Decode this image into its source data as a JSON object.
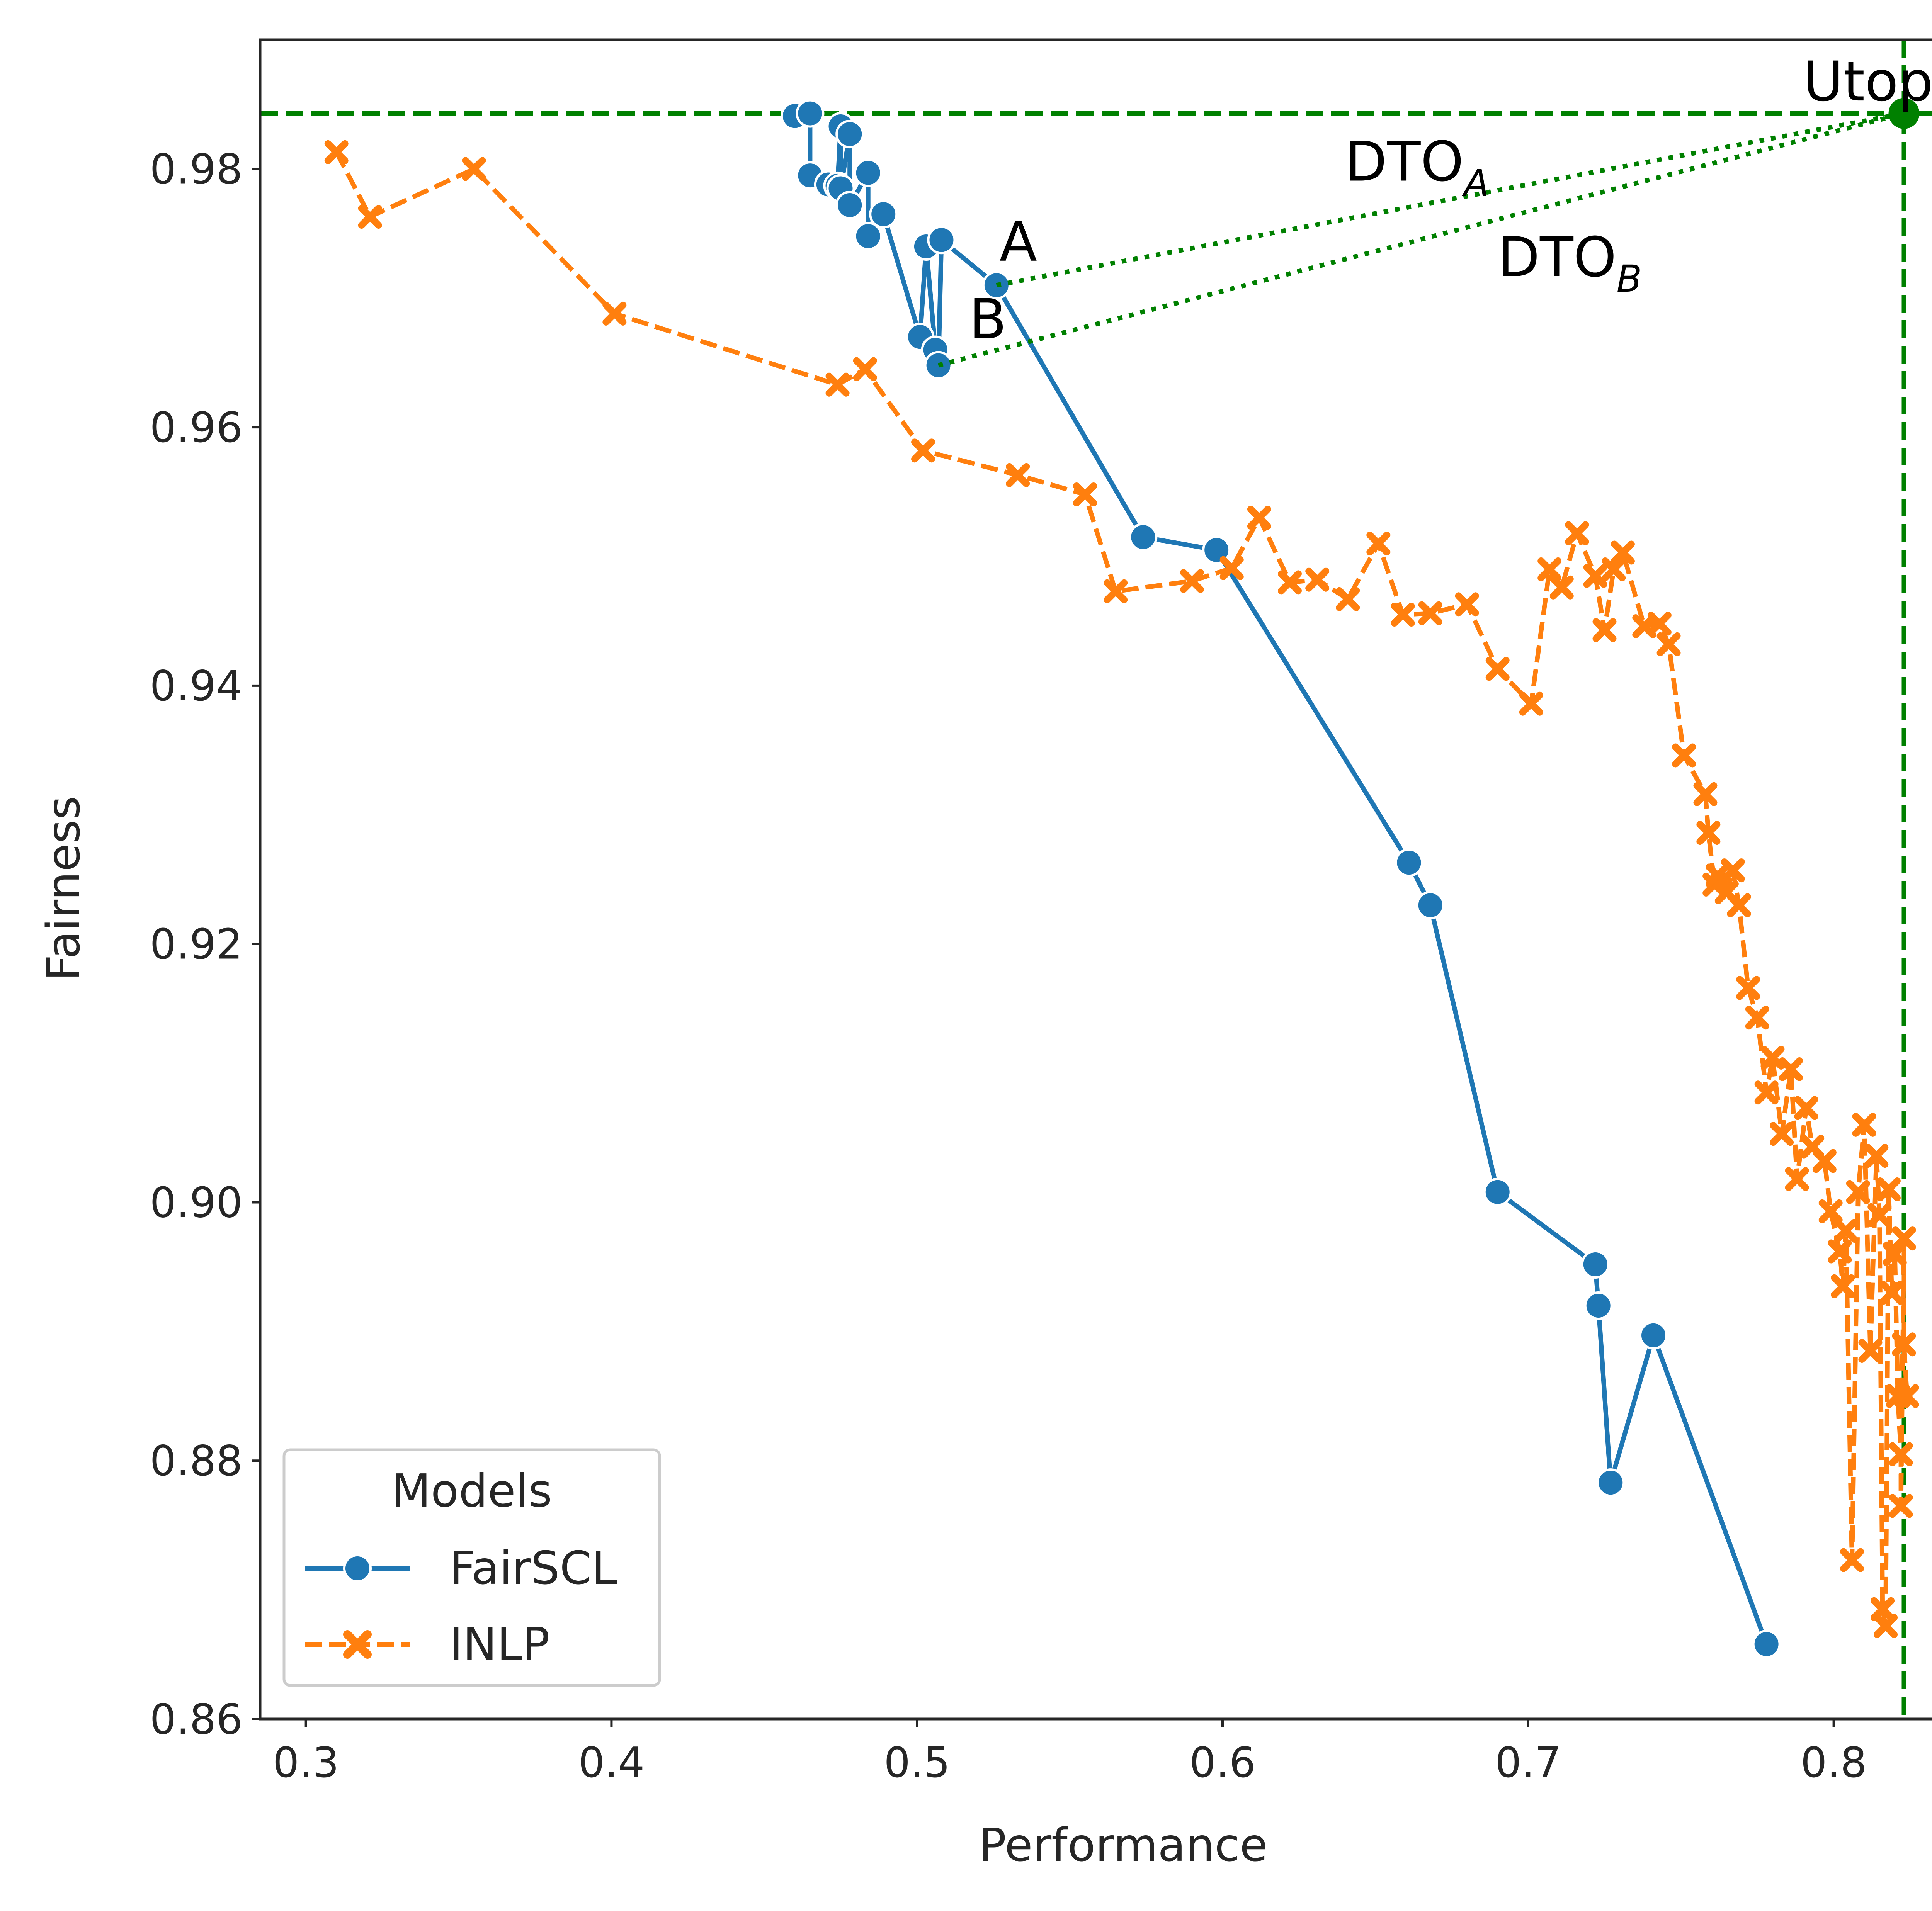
{
  "chart_data": {
    "type": "line",
    "xlabel": "Performance",
    "ylabel": "Fairness",
    "xlim": [
      0.285,
      0.85
    ],
    "ylim": [
      0.86,
      0.99
    ],
    "x_ticks": [
      0.3,
      0.4,
      0.5,
      0.6,
      0.7,
      0.8
    ],
    "x_tick_labels": [
      "0.3",
      "0.4",
      "0.5",
      "0.6",
      "0.7",
      "0.8"
    ],
    "y_ticks": [
      0.86,
      0.88,
      0.9,
      0.92,
      0.94,
      0.96,
      0.98
    ],
    "y_tick_labels": [
      "0.86",
      "0.88",
      "0.90",
      "0.92",
      "0.94",
      "0.96",
      "0.98"
    ],
    "grid": false,
    "legend": {
      "title": "Models",
      "placement": "lower-left",
      "entries": [
        "FairSCL",
        "INLP"
      ]
    },
    "series": [
      {
        "name": "FairSCL",
        "color": "#1f77b4",
        "marker": "circle",
        "line_style": "solid",
        "points": [
          [
            0.46,
            0.9841
          ],
          [
            0.465,
            0.9843
          ],
          [
            0.465,
            0.9795
          ],
          [
            0.471,
            0.9788
          ],
          [
            0.474,
            0.9787
          ],
          [
            0.475,
            0.9833
          ],
          [
            0.475,
            0.9785
          ],
          [
            0.478,
            0.9827
          ],
          [
            0.478,
            0.9772
          ],
          [
            0.484,
            0.9797
          ],
          [
            0.484,
            0.9748
          ],
          [
            0.489,
            0.9765
          ],
          [
            0.501,
            0.967
          ],
          [
            0.503,
            0.974
          ],
          [
            0.506,
            0.966
          ],
          [
            0.507,
            0.9648
          ],
          [
            0.508,
            0.9745
          ],
          [
            0.526,
            0.971
          ],
          [
            0.574,
            0.9515
          ],
          [
            0.598,
            0.9505
          ],
          [
            0.661,
            0.9263
          ],
          [
            0.668,
            0.923
          ],
          [
            0.69,
            0.9008
          ],
          [
            0.722,
            0.8952
          ],
          [
            0.723,
            0.892
          ],
          [
            0.727,
            0.8783
          ],
          [
            0.741,
            0.8897
          ],
          [
            0.778,
            0.8658
          ]
        ]
      },
      {
        "name": "INLP",
        "color": "#ff7f0e",
        "marker": "x",
        "line_style": "dashed",
        "points": [
          [
            0.31,
            0.9813
          ],
          [
            0.321,
            0.9763
          ],
          [
            0.355,
            0.98
          ],
          [
            0.401,
            0.9688
          ],
          [
            0.474,
            0.9633
          ],
          [
            0.483,
            0.9645
          ],
          [
            0.502,
            0.9582
          ],
          [
            0.533,
            0.9563
          ],
          [
            0.555,
            0.9548
          ],
          [
            0.565,
            0.9473
          ],
          [
            0.59,
            0.9481
          ],
          [
            0.603,
            0.9491
          ],
          [
            0.612,
            0.953
          ],
          [
            0.622,
            0.948
          ],
          [
            0.631,
            0.9482
          ],
          [
            0.641,
            0.9467
          ],
          [
            0.651,
            0.951
          ],
          [
            0.659,
            0.9455
          ],
          [
            0.668,
            0.9456
          ],
          [
            0.68,
            0.9463
          ],
          [
            0.69,
            0.9413
          ],
          [
            0.701,
            0.9386
          ],
          [
            0.707,
            0.949
          ],
          [
            0.711,
            0.9476
          ],
          [
            0.716,
            0.9518
          ],
          [
            0.722,
            0.9485
          ],
          [
            0.725,
            0.9443
          ],
          [
            0.728,
            0.949
          ],
          [
            0.731,
            0.9503
          ],
          [
            0.738,
            0.9446
          ],
          [
            0.743,
            0.9448
          ],
          [
            0.746,
            0.9432
          ],
          [
            0.751,
            0.9346
          ],
          [
            0.758,
            0.9316
          ],
          [
            0.759,
            0.9286
          ],
          [
            0.761,
            0.9246
          ],
          [
            0.762,
            0.9253
          ],
          [
            0.765,
            0.924
          ],
          [
            0.767,
            0.9257
          ],
          [
            0.769,
            0.923
          ],
          [
            0.772,
            0.9166
          ],
          [
            0.775,
            0.9143
          ],
          [
            0.778,
            0.9085
          ],
          [
            0.78,
            0.9112
          ],
          [
            0.783,
            0.9053
          ],
          [
            0.786,
            0.9103
          ],
          [
            0.788,
            0.9018
          ],
          [
            0.791,
            0.9073
          ],
          [
            0.793,
            0.9043
          ],
          [
            0.797,
            0.9032
          ],
          [
            0.799,
            0.8993
          ],
          [
            0.802,
            0.8962
          ],
          [
            0.803,
            0.8935
          ],
          [
            0.804,
            0.8978
          ],
          [
            0.806,
            0.8723
          ],
          [
            0.808,
            0.9008
          ],
          [
            0.81,
            0.906
          ],
          [
            0.812,
            0.8885
          ],
          [
            0.814,
            0.9036
          ],
          [
            0.815,
            0.899
          ],
          [
            0.816,
            0.8685
          ],
          [
            0.817,
            0.8672
          ],
          [
            0.818,
            0.901
          ],
          [
            0.819,
            0.893
          ],
          [
            0.82,
            0.896
          ],
          [
            0.821,
            0.885
          ],
          [
            0.822,
            0.8805
          ],
          [
            0.822,
            0.8765
          ],
          [
            0.823,
            0.8972
          ],
          [
            0.823,
            0.889
          ],
          [
            0.824,
            0.885
          ]
        ]
      }
    ],
    "utopia_point": {
      "x": 0.823,
      "y": 0.9843,
      "color": "#008000"
    },
    "reference_lines": {
      "horizontal_y": 0.9843,
      "vertical_x": 0.823,
      "color": "#008000",
      "style": "dashed"
    },
    "distance_lines": [
      {
        "from": [
          0.526,
          0.971
        ],
        "to": [
          0.823,
          0.9843
        ],
        "style": "dotted",
        "color": "#008000"
      },
      {
        "from": [
          0.507,
          0.9648
        ],
        "to": [
          0.823,
          0.9843
        ],
        "style": "dotted",
        "color": "#008000"
      }
    ],
    "annotations": [
      {
        "text": "Utopia",
        "x": 0.79,
        "y": 0.9853,
        "subscript": ""
      },
      {
        "text": "DTO",
        "x": 0.64,
        "y": 0.9791,
        "subscript": "A"
      },
      {
        "text": "DTO",
        "x": 0.69,
        "y": 0.9717,
        "subscript": "B"
      },
      {
        "text": "A",
        "x": 0.527,
        "y": 0.9729,
        "subscript": ""
      },
      {
        "text": "B",
        "x": 0.517,
        "y": 0.9669,
        "subscript": ""
      }
    ]
  }
}
